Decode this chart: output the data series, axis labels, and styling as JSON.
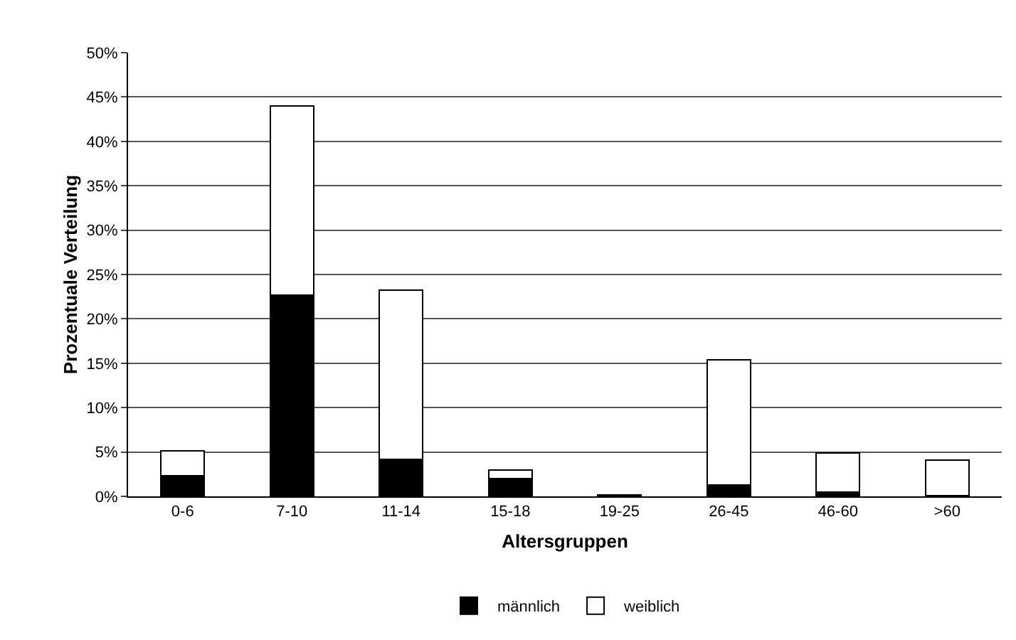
{
  "chart_data": {
    "type": "bar",
    "stacked": true,
    "xlabel": "Altersgruppen",
    "ylabel": "Prozentuale Verteilung",
    "categories": [
      "0-6",
      "7-10",
      "11-14",
      "15-18",
      "19-25",
      "26-45",
      "46-60",
      ">60"
    ],
    "series": [
      {
        "name": "männlich",
        "color": "#000000",
        "values": [
          2.3,
          22.7,
          4.2,
          2.0,
          0.2,
          1.3,
          0.5,
          0.1
        ]
      },
      {
        "name": "weiblich",
        "color": "#ffffff",
        "values": [
          2.8,
          21.3,
          19.0,
          1.0,
          null,
          14.1,
          4.4,
          4.0
        ]
      }
    ],
    "ylim": [
      0,
      50
    ],
    "yticks": [
      {
        "value": 0,
        "label": "0%"
      },
      {
        "value": 5,
        "label": "5%"
      },
      {
        "value": 10,
        "label": "10%"
      },
      {
        "value": 15,
        "label": "15%"
      },
      {
        "value": 20,
        "label": "20%"
      },
      {
        "value": 25,
        "label": "25%"
      },
      {
        "value": 30,
        "label": "30%"
      },
      {
        "value": 35,
        "label": "35%"
      },
      {
        "value": 40,
        "label": "40%"
      },
      {
        "value": 45,
        "label": "45%"
      },
      {
        "value": 50,
        "label": "50%"
      }
    ],
    "grid": "y",
    "legend": "bottom"
  }
}
